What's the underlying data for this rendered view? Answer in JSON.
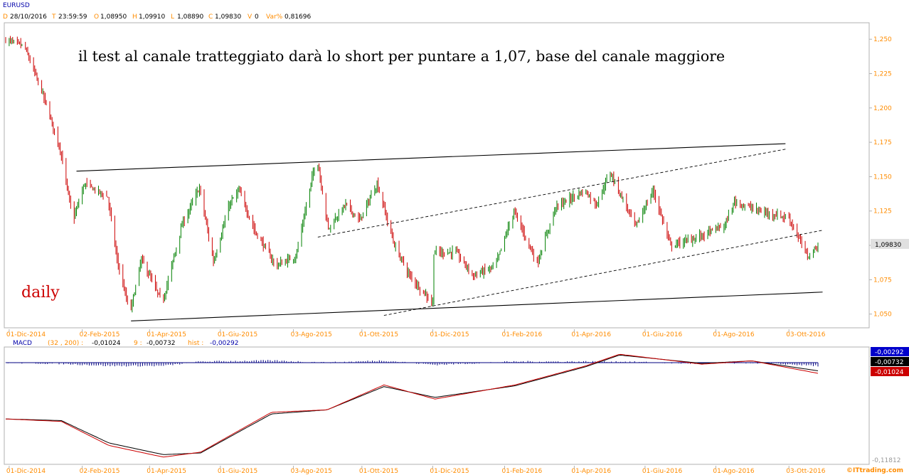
{
  "header": {
    "symbol": "EURUSD",
    "d_label": "D",
    "date": "28/10/2016",
    "t_label": "T",
    "time": "23:59:59",
    "o_label": "O",
    "open": "1,08950",
    "h_label": "H",
    "high": "1,09910",
    "l_label": "L",
    "low": "1,08890",
    "c_label": "C",
    "close": "1,09830",
    "v_label": "V",
    "volume": "0",
    "var_label": "Var%",
    "var_value": "0,81696"
  },
  "annotations": {
    "main_text": "il test al canale tratteggiato darà lo short per puntare a 1,07, base del canale maggiore",
    "timeframe": "daily"
  },
  "macd_header": {
    "label": "MACD",
    "params": "(32 , 200) :",
    "macd_value": "-0,01024",
    "signal_label": "9 :",
    "signal_value": "-0,00732",
    "hist_label": "hist :",
    "hist_value": "-0,00292"
  },
  "macd_scale": {
    "badge_hist": "-0,00292",
    "badge_signal": "-0,00732",
    "badge_macd": "-0,01024",
    "bottom_label": "-0,11812"
  },
  "last_price_badge": "1,09830",
  "watermark": "©ITtrading.com",
  "colors": {
    "up_candle": "#008000",
    "down_candle": "#cc0000",
    "macd_line": "#cc0000",
    "signal_line": "#000000",
    "histogram": "#000080",
    "axis_text": "#ff8c00",
    "annotation_red": "#cc0000"
  },
  "chart_data": [
    {
      "type": "candlestick",
      "symbol": "EURUSD",
      "timeframe": "daily",
      "y_ticks": [
        "1,250",
        "1,225",
        "1,200",
        "1,175",
        "1,150",
        "1,125",
        "1,100",
        "1,075",
        "1,050"
      ],
      "ylim": [
        1.04,
        1.262
      ],
      "x_ticks": [
        "01-Dic-2014",
        "02-Feb-2015",
        "01-Apr-2015",
        "01-Giu-2015",
        "03-Ago-2015",
        "01-Ott-2015",
        "01-Dic-2015",
        "01-Feb-2016",
        "01-Apr-2016",
        "01-Giu-2016",
        "01-Ago-2016",
        "03-Ott-2016"
      ],
      "anchors": [
        {
          "date": "2014-11-28",
          "price": 1.25
        },
        {
          "date": "2014-12-15",
          "price": 1.245
        },
        {
          "date": "2014-12-31",
          "price": 1.21
        },
        {
          "date": "2015-01-15",
          "price": 1.17
        },
        {
          "date": "2015-01-26",
          "price": 1.118
        },
        {
          "date": "2015-02-05",
          "price": 1.145
        },
        {
          "date": "2015-02-25",
          "price": 1.135
        },
        {
          "date": "2015-03-05",
          "price": 1.09
        },
        {
          "date": "2015-03-16",
          "price": 1.05
        },
        {
          "date": "2015-03-26",
          "price": 1.09
        },
        {
          "date": "2015-04-13",
          "price": 1.058
        },
        {
          "date": "2015-04-30",
          "price": 1.115
        },
        {
          "date": "2015-05-15",
          "price": 1.142
        },
        {
          "date": "2015-05-27",
          "price": 1.088
        },
        {
          "date": "2015-06-10",
          "price": 1.13
        },
        {
          "date": "2015-06-18",
          "price": 1.14
        },
        {
          "date": "2015-07-02",
          "price": 1.11
        },
        {
          "date": "2015-07-20",
          "price": 1.085
        },
        {
          "date": "2015-08-06",
          "price": 1.092
        },
        {
          "date": "2015-08-24",
          "price": 1.165
        },
        {
          "date": "2015-09-03",
          "price": 1.112
        },
        {
          "date": "2015-09-18",
          "price": 1.13
        },
        {
          "date": "2015-09-30",
          "price": 1.118
        },
        {
          "date": "2015-10-15",
          "price": 1.145
        },
        {
          "date": "2015-10-30",
          "price": 1.1
        },
        {
          "date": "2015-11-12",
          "price": 1.078
        },
        {
          "date": "2015-12-02",
          "price": 1.058
        },
        {
          "date": "2015-12-03",
          "price": 1.095
        },
        {
          "date": "2015-12-22",
          "price": 1.095
        },
        {
          "date": "2016-01-06",
          "price": 1.078
        },
        {
          "date": "2016-01-25",
          "price": 1.085
        },
        {
          "date": "2016-02-10",
          "price": 1.125
        },
        {
          "date": "2016-03-01",
          "price": 1.087
        },
        {
          "date": "2016-03-17",
          "price": 1.128
        },
        {
          "date": "2016-04-11",
          "price": 1.14
        },
        {
          "date": "2016-04-21",
          "price": 1.13
        },
        {
          "date": "2016-05-03",
          "price": 1.153
        },
        {
          "date": "2016-05-25",
          "price": 1.114
        },
        {
          "date": "2016-06-09",
          "price": 1.14
        },
        {
          "date": "2016-06-24",
          "price": 1.1
        },
        {
          "date": "2016-07-15",
          "price": 1.105
        },
        {
          "date": "2016-08-10",
          "price": 1.115
        },
        {
          "date": "2016-08-18",
          "price": 1.132
        },
        {
          "date": "2016-09-08",
          "price": 1.125
        },
        {
          "date": "2016-10-04",
          "price": 1.12
        },
        {
          "date": "2016-10-20",
          "price": 1.092
        },
        {
          "date": "2016-10-28",
          "price": 1.0983
        }
      ],
      "trendlines": [
        {
          "style": "solid",
          "from": {
            "date": "2015-01-28",
            "price": 1.154
          },
          "to": {
            "date": "2016-09-30",
            "price": 1.174
          }
        },
        {
          "style": "solid",
          "from": {
            "date": "2015-03-16",
            "price": 1.045
          },
          "to": {
            "date": "2016-11-01",
            "price": 1.066
          }
        },
        {
          "style": "dashed",
          "from": {
            "date": "2015-08-24",
            "price": 1.106
          },
          "to": {
            "date": "2016-09-30",
            "price": 1.17
          }
        },
        {
          "style": "dashed",
          "from": {
            "date": "2015-10-20",
            "price": 1.049
          },
          "to": {
            "date": "2016-11-01",
            "price": 1.111
          }
        }
      ]
    },
    {
      "type": "line",
      "name": "MACD",
      "params": "(32 , 200)",
      "ylim": [
        -0.118,
        0.02
      ],
      "bottom_tick": "-0,11812",
      "series": [
        {
          "name": "MACD",
          "points": [
            {
              "date": "2014-11-28",
              "value": -0.065
            },
            {
              "date": "2015-01-15",
              "value": -0.068
            },
            {
              "date": "2015-02-25",
              "value": -0.097
            },
            {
              "date": "2015-04-13",
              "value": -0.111
            },
            {
              "date": "2015-05-15",
              "value": -0.105
            },
            {
              "date": "2015-07-15",
              "value": -0.057
            },
            {
              "date": "2015-09-01",
              "value": -0.054
            },
            {
              "date": "2015-10-20",
              "value": -0.024
            },
            {
              "date": "2015-12-03",
              "value": -0.041
            },
            {
              "date": "2016-02-10",
              "value": -0.024
            },
            {
              "date": "2016-04-11",
              "value": -0.001
            },
            {
              "date": "2016-05-10",
              "value": 0.013
            },
            {
              "date": "2016-07-20",
              "value": 0.001
            },
            {
              "date": "2016-09-01",
              "value": 0.005
            },
            {
              "date": "2016-10-28",
              "value": -0.01
            }
          ]
        },
        {
          "name": "9",
          "points": [
            {
              "date": "2014-11-28",
              "value": -0.065
            },
            {
              "date": "2015-01-15",
              "value": -0.067
            },
            {
              "date": "2015-02-25",
              "value": -0.094
            },
            {
              "date": "2015-04-13",
              "value": -0.108
            },
            {
              "date": "2015-05-15",
              "value": -0.106
            },
            {
              "date": "2015-07-15",
              "value": -0.059
            },
            {
              "date": "2015-09-01",
              "value": -0.054
            },
            {
              "date": "2015-10-20",
              "value": -0.026
            },
            {
              "date": "2015-12-03",
              "value": -0.039
            },
            {
              "date": "2016-02-10",
              "value": -0.025
            },
            {
              "date": "2016-04-11",
              "value": -0.002
            },
            {
              "date": "2016-05-10",
              "value": 0.012
            },
            {
              "date": "2016-07-20",
              "value": 0.002
            },
            {
              "date": "2016-09-01",
              "value": 0.005
            },
            {
              "date": "2016-10-28",
              "value": -0.007
            }
          ]
        }
      ]
    }
  ]
}
